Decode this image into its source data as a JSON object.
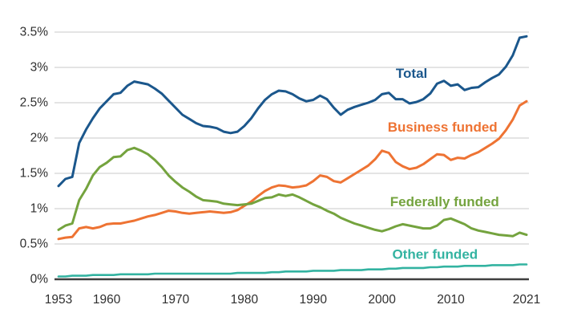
{
  "page": {
    "background": "#ffffff"
  },
  "chart_data": {
    "type": "line",
    "title": "",
    "xlabel": "",
    "ylabel": "",
    "unit": "percent",
    "xlim": [
      1953,
      2021
    ],
    "ylim": [
      0,
      3.5
    ],
    "grid": "horizontal",
    "legend": "inline-labels",
    "grid_color": "#c8c8c8",
    "axis_color": "#3f3f3f",
    "tick_color": "#2f2f2f",
    "yticks": [
      {
        "value": 0,
        "label": "0%"
      },
      {
        "value": 0.5,
        "label": "0.5%"
      },
      {
        "value": 1,
        "label": "1%"
      },
      {
        "value": 1.5,
        "label": "1.5%"
      },
      {
        "value": 2,
        "label": "2%"
      },
      {
        "value": 2.5,
        "label": "2.5%"
      },
      {
        "value": 3,
        "label": "3%"
      },
      {
        "value": 3.5,
        "label": "3.5%"
      }
    ],
    "xticks": [
      {
        "value": 1953,
        "label": "1953"
      },
      {
        "value": 1960,
        "label": "1960"
      },
      {
        "value": 1970,
        "label": "1970"
      },
      {
        "value": 1980,
        "label": "1980"
      },
      {
        "value": 1990,
        "label": "1990"
      },
      {
        "value": 2000,
        "label": "2000"
      },
      {
        "value": 2010,
        "label": "2010"
      },
      {
        "value": 2021,
        "label": "2021"
      }
    ],
    "years": [
      1953,
      1954,
      1955,
      1956,
      1957,
      1958,
      1959,
      1960,
      1961,
      1962,
      1963,
      1964,
      1965,
      1966,
      1967,
      1968,
      1969,
      1970,
      1971,
      1972,
      1973,
      1974,
      1975,
      1976,
      1977,
      1978,
      1979,
      1980,
      1981,
      1982,
      1983,
      1984,
      1985,
      1986,
      1987,
      1988,
      1989,
      1990,
      1991,
      1992,
      1993,
      1994,
      1995,
      1996,
      1997,
      1998,
      1999,
      2000,
      2001,
      2002,
      2003,
      2004,
      2005,
      2006,
      2007,
      2008,
      2009,
      2010,
      2011,
      2012,
      2013,
      2014,
      2015,
      2016,
      2017,
      2018,
      2019,
      2020,
      2021
    ],
    "series": [
      {
        "name": "Total",
        "color": "#1b578c",
        "stroke_width": 3,
        "label_anchor": {
          "year": 2004.3,
          "value": 2.92
        },
        "values": [
          1.32,
          1.42,
          1.45,
          1.93,
          2.12,
          2.28,
          2.42,
          2.52,
          2.62,
          2.64,
          2.74,
          2.8,
          2.78,
          2.76,
          2.7,
          2.63,
          2.53,
          2.43,
          2.33,
          2.27,
          2.21,
          2.17,
          2.16,
          2.14,
          2.09,
          2.07,
          2.09,
          2.17,
          2.28,
          2.42,
          2.54,
          2.62,
          2.67,
          2.66,
          2.62,
          2.56,
          2.52,
          2.54,
          2.6,
          2.55,
          2.43,
          2.33,
          2.4,
          2.44,
          2.47,
          2.5,
          2.54,
          2.62,
          2.64,
          2.55,
          2.55,
          2.49,
          2.51,
          2.55,
          2.63,
          2.77,
          2.81,
          2.74,
          2.76,
          2.68,
          2.71,
          2.72,
          2.79,
          2.85,
          2.9,
          3.01,
          3.17,
          3.42,
          3.44
        ]
      },
      {
        "name": "Business funded",
        "color": "#ee7333",
        "stroke_width": 3,
        "label_anchor": {
          "year": 2008.8,
          "value": 2.16
        },
        "values": [
          0.57,
          0.59,
          0.6,
          0.72,
          0.74,
          0.72,
          0.74,
          0.78,
          0.79,
          0.79,
          0.81,
          0.83,
          0.86,
          0.89,
          0.91,
          0.94,
          0.97,
          0.96,
          0.94,
          0.93,
          0.94,
          0.95,
          0.96,
          0.95,
          0.94,
          0.95,
          0.98,
          1.04,
          1.1,
          1.18,
          1.25,
          1.3,
          1.33,
          1.32,
          1.3,
          1.31,
          1.33,
          1.39,
          1.47,
          1.45,
          1.39,
          1.37,
          1.43,
          1.49,
          1.55,
          1.61,
          1.7,
          1.82,
          1.79,
          1.66,
          1.6,
          1.56,
          1.58,
          1.63,
          1.7,
          1.77,
          1.76,
          1.69,
          1.72,
          1.71,
          1.76,
          1.8,
          1.86,
          1.92,
          1.99,
          2.11,
          2.26,
          2.46,
          2.52
        ]
      },
      {
        "name": "Federally funded",
        "color": "#74a33e",
        "stroke_width": 3,
        "label_anchor": {
          "year": 2009.1,
          "value": 1.1
        },
        "values": [
          0.7,
          0.76,
          0.79,
          1.12,
          1.28,
          1.47,
          1.59,
          1.65,
          1.73,
          1.74,
          1.83,
          1.86,
          1.82,
          1.77,
          1.69,
          1.59,
          1.47,
          1.38,
          1.3,
          1.24,
          1.17,
          1.12,
          1.11,
          1.1,
          1.07,
          1.06,
          1.05,
          1.06,
          1.07,
          1.11,
          1.15,
          1.16,
          1.2,
          1.18,
          1.2,
          1.16,
          1.11,
          1.06,
          1.02,
          0.97,
          0.93,
          0.87,
          0.83,
          0.79,
          0.76,
          0.73,
          0.7,
          0.68,
          0.71,
          0.75,
          0.78,
          0.76,
          0.74,
          0.72,
          0.72,
          0.76,
          0.84,
          0.86,
          0.82,
          0.78,
          0.72,
          0.69,
          0.67,
          0.65,
          0.63,
          0.62,
          0.61,
          0.66,
          0.63
        ]
      },
      {
        "name": "Other funded",
        "color": "#33b3a1",
        "stroke_width": 2.6,
        "label_anchor": {
          "year": 2007.7,
          "value": 0.36
        },
        "values": [
          0.04,
          0.04,
          0.05,
          0.05,
          0.05,
          0.06,
          0.06,
          0.06,
          0.06,
          0.07,
          0.07,
          0.07,
          0.07,
          0.07,
          0.08,
          0.08,
          0.08,
          0.08,
          0.08,
          0.08,
          0.08,
          0.08,
          0.08,
          0.08,
          0.08,
          0.08,
          0.09,
          0.09,
          0.09,
          0.09,
          0.09,
          0.1,
          0.1,
          0.11,
          0.11,
          0.11,
          0.11,
          0.12,
          0.12,
          0.12,
          0.12,
          0.13,
          0.13,
          0.13,
          0.13,
          0.14,
          0.14,
          0.14,
          0.15,
          0.15,
          0.16,
          0.16,
          0.16,
          0.16,
          0.17,
          0.17,
          0.18,
          0.18,
          0.18,
          0.19,
          0.19,
          0.19,
          0.19,
          0.2,
          0.2,
          0.2,
          0.2,
          0.21,
          0.21
        ]
      }
    ]
  }
}
